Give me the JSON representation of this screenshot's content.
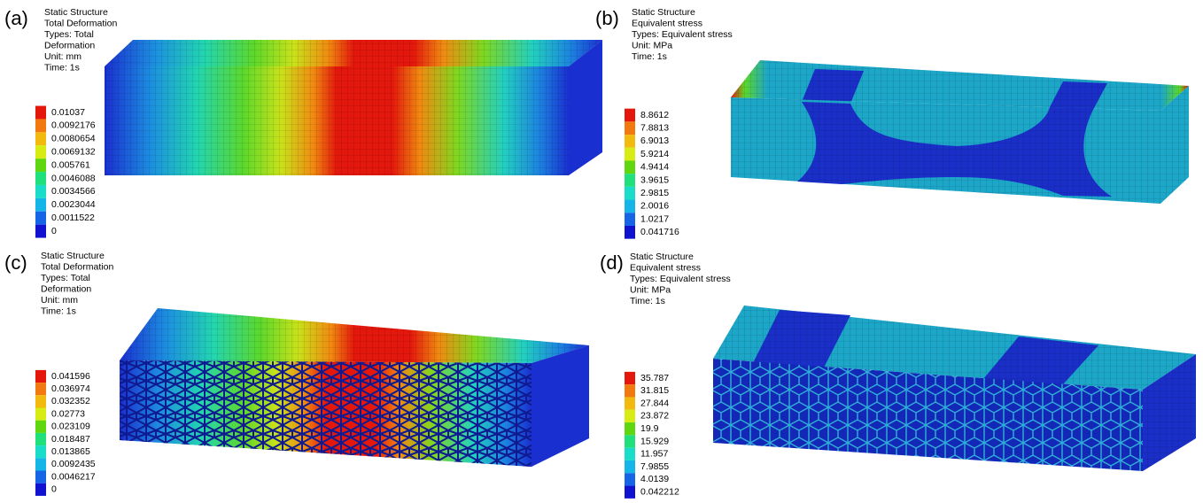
{
  "panels": [
    {
      "label": "(a)",
      "header": [
        "Static Structure",
        "Total Deformation",
        "Types: Total",
        "Deformation",
        "Unit: mm",
        "Time: 1s"
      ],
      "legend": [
        "0.01037",
        "0.0092176",
        "0.0080654",
        "0.0069132",
        "0.005761",
        "0.0046088",
        "0.0034566",
        "0.0023044",
        "0.0011522",
        "0"
      ]
    },
    {
      "label": "(b)",
      "header": [
        "Static Structure",
        "Equivalent stress",
        "Types: Equivalent stress",
        "Unit: MPa",
        "Time: 1s"
      ],
      "legend": [
        "8.8612",
        "7.8813",
        "6.9013",
        "5.9214",
        "4.9414",
        "3.9615",
        "2.9815",
        "2.0016",
        "1.0217",
        "0.041716"
      ]
    },
    {
      "label": "(c)",
      "header": [
        "Static Structure",
        "Total Deformation",
        "Types: Total",
        "Deformation",
        "Unit: mm",
        "Time: 1s"
      ],
      "legend": [
        "0.041596",
        "0.036974",
        "0.032352",
        "0.02773",
        "0.023109",
        "0.018487",
        "0.013865",
        "0.0092435",
        "0.0046217",
        "0"
      ]
    },
    {
      "label": "(d)",
      "header": [
        "Static Structure",
        "Equivalent stress",
        "Types: Equivalent stress",
        "Unit: MPa",
        "Time: 1s"
      ],
      "legend": [
        "35.787",
        "31.815",
        "27.844",
        "23.872",
        "19.9",
        "15.929",
        "11.957",
        "7.9855",
        "4.0139",
        "0.042212"
      ]
    }
  ]
}
